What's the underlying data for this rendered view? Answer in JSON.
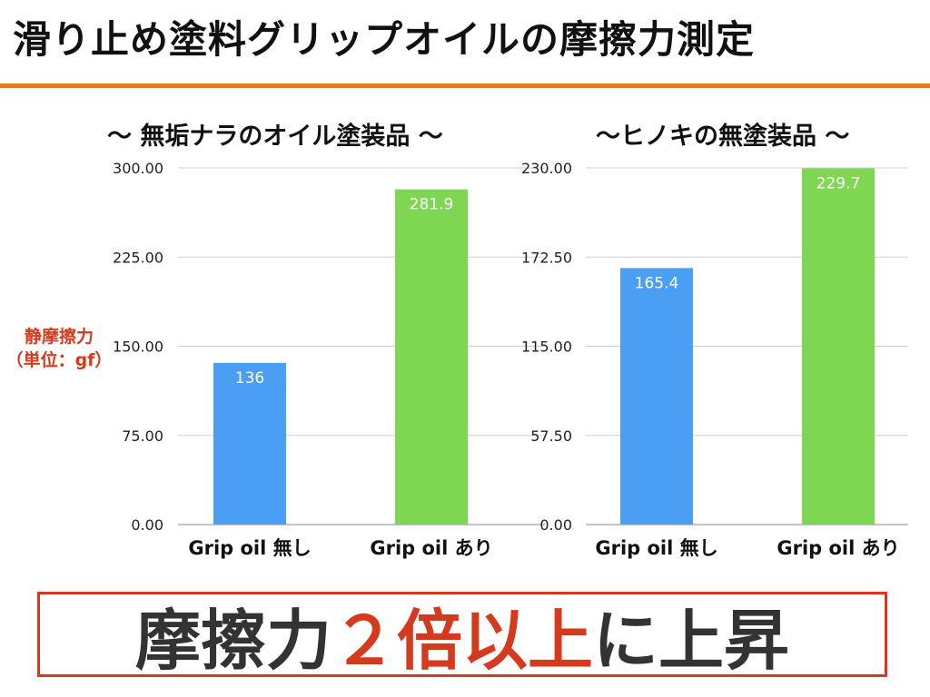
{
  "page": {
    "title": "滑り止め塗料グリップオイルの摩擦力測定",
    "accent_color": "#e07a26",
    "text_color": "#111111",
    "ylabel_color": "#d63a1e"
  },
  "ylabel": {
    "line1": "静摩擦力",
    "line2": "（単位：gf）"
  },
  "conclusion": {
    "part1": "摩擦力",
    "part2": "２倍以上",
    "part3": "に上昇",
    "dark_color": "#333333",
    "red_color": "#d63a1e",
    "border_color": "#d63a1e"
  },
  "chart_data": [
    {
      "type": "bar",
      "title": "〜 無垢ナラのオイル塗装品 〜",
      "categories": [
        "Grip oil 無し",
        "Grip oil あり"
      ],
      "values": [
        136,
        281.9
      ],
      "value_labels": [
        "136",
        "281.9"
      ],
      "colors": [
        "#4a9ff5",
        "#7fd651"
      ],
      "ylim": [
        0,
        300
      ],
      "ticks": [
        "0.00",
        "75.00",
        "150.00",
        "225.00",
        "300.00"
      ],
      "grid": true,
      "legend": "none"
    },
    {
      "type": "bar",
      "title": "〜ヒノキの無塗装品 〜",
      "categories": [
        "Grip oil 無し",
        "Grip oil あり"
      ],
      "values": [
        165.4,
        229.7
      ],
      "value_labels": [
        "165.4",
        "229.7"
      ],
      "colors": [
        "#4a9ff5",
        "#7fd651"
      ],
      "ylim": [
        0,
        230
      ],
      "ticks": [
        "0.00",
        "57.50",
        "115.00",
        "172.50",
        "230.00"
      ],
      "grid": true,
      "legend": "none"
    }
  ]
}
